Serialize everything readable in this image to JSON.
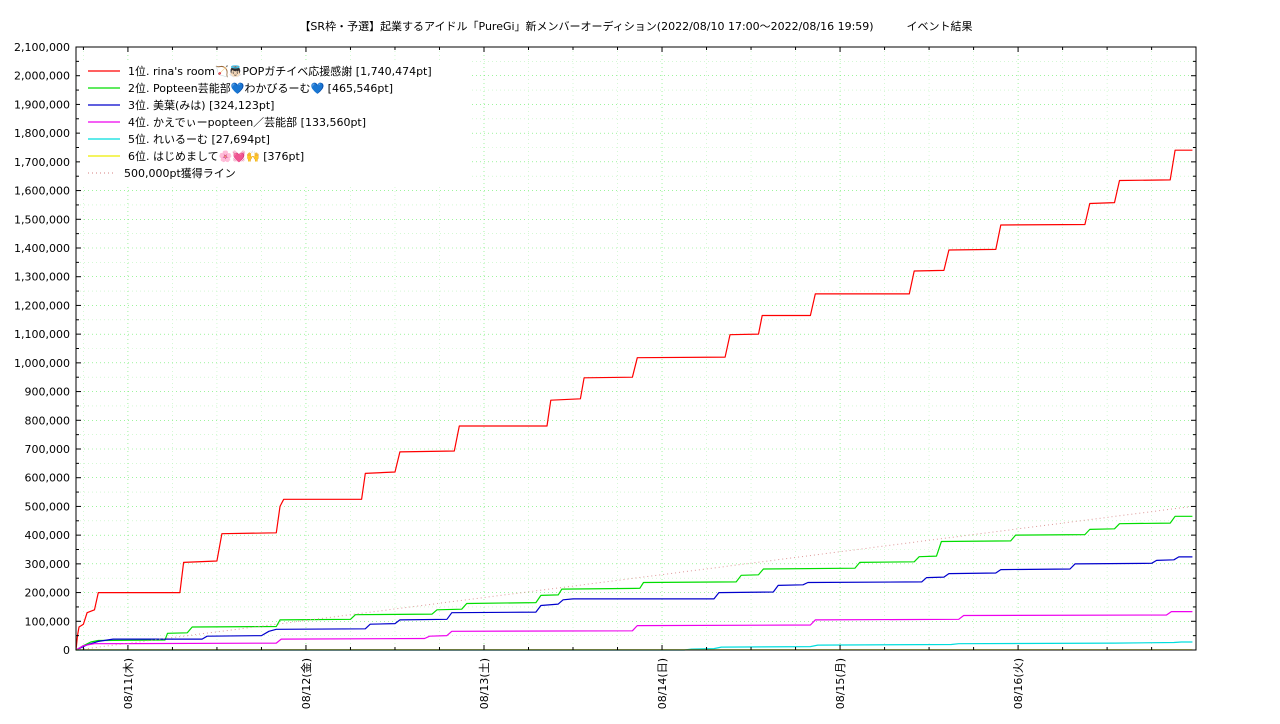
{
  "chart_data": {
    "type": "line",
    "title": "【SR枠・予選】起業するアイドル「PureGi」新メンバーオーディション(2022/08/10 17:00〜2022/08/16 19:59)　　　イベント結果",
    "xlabel": "",
    "ylabel": "",
    "ylim": [
      0,
      2100000
    ],
    "xlim": [
      "2022-08-10 17:00",
      "2022-08-16 19:59"
    ],
    "yticks": [
      "0",
      "100,000",
      "200,000",
      "300,000",
      "400,000",
      "500,000",
      "600,000",
      "700,000",
      "800,000",
      "900,000",
      "1,000,000",
      "1,100,000",
      "1,200,000",
      "1,300,000",
      "1,400,000",
      "1,500,000",
      "1,600,000",
      "1,700,000",
      "1,800,000",
      "1,900,000",
      "2,000,000",
      "2,100,000"
    ],
    "xticks": [
      {
        "t": "2022-08-11 00:00",
        "label": "08/11(木)"
      },
      {
        "t": "2022-08-12 00:00",
        "label": "08/12(金)"
      },
      {
        "t": "2022-08-13 00:00",
        "label": "08/13(土)"
      },
      {
        "t": "2022-08-14 00:00",
        "label": "08/14(日)"
      },
      {
        "t": "2022-08-15 00:00",
        "label": "08/15(月)"
      },
      {
        "t": "2022-08-16 00:00",
        "label": "08/16(火)"
      }
    ],
    "grid": true,
    "legend_position": "top-left",
    "series": [
      {
        "name": "1位. rina's room🏹👼🏻POPガチイベ応援感謝 [1,740,474pt]",
        "color": "#ff0000",
        "points": [
          [
            "2022-08-10 17:00",
            0
          ],
          [
            "2022-08-10 17:12",
            50000
          ],
          [
            "2022-08-10 17:24",
            80000
          ],
          [
            "2022-08-10 18:00",
            90000
          ],
          [
            "2022-08-10 18:30",
            130000
          ],
          [
            "2022-08-10 19:30",
            140000
          ],
          [
            "2022-08-10 20:00",
            200000
          ],
          [
            "2022-08-11 07:00",
            200000
          ],
          [
            "2022-08-11 07:30",
            305000
          ],
          [
            "2022-08-11 12:00",
            310000
          ],
          [
            "2022-08-11 12:40",
            405000
          ],
          [
            "2022-08-11 20:00",
            408000
          ],
          [
            "2022-08-11 20:30",
            500000
          ],
          [
            "2022-08-11 21:00",
            525000
          ],
          [
            "2022-08-12 07:30",
            525000
          ],
          [
            "2022-08-12 08:00",
            615000
          ],
          [
            "2022-08-12 12:00",
            620000
          ],
          [
            "2022-08-12 12:40",
            690000
          ],
          [
            "2022-08-12 20:00",
            693000
          ],
          [
            "2022-08-12 20:40",
            780000
          ],
          [
            "2022-08-13 08:30",
            780000
          ],
          [
            "2022-08-13 09:00",
            870000
          ],
          [
            "2022-08-13 13:00",
            875000
          ],
          [
            "2022-08-13 13:30",
            948000
          ],
          [
            "2022-08-13 20:00",
            950000
          ],
          [
            "2022-08-13 20:40",
            1018000
          ],
          [
            "2022-08-14 08:30",
            1020000
          ],
          [
            "2022-08-14 09:10",
            1098000
          ],
          [
            "2022-08-14 13:00",
            1100000
          ],
          [
            "2022-08-14 13:30",
            1165000
          ],
          [
            "2022-08-14 20:00",
            1165000
          ],
          [
            "2022-08-14 20:40",
            1240000
          ],
          [
            "2022-08-15 09:20",
            1240000
          ],
          [
            "2022-08-15 10:00",
            1320000
          ],
          [
            "2022-08-15 14:00",
            1322000
          ],
          [
            "2022-08-15 14:40",
            1393000
          ],
          [
            "2022-08-15 21:00",
            1395000
          ],
          [
            "2022-08-15 21:40",
            1480000
          ],
          [
            "2022-08-16 09:00",
            1482000
          ],
          [
            "2022-08-16 09:40",
            1555000
          ],
          [
            "2022-08-16 13:00",
            1558000
          ],
          [
            "2022-08-16 13:40",
            1635000
          ],
          [
            "2022-08-16 20:30",
            1637000
          ],
          [
            "2022-08-16 21:10",
            1740474
          ],
          [
            "2022-08-16 23:30",
            1740474
          ]
        ]
      },
      {
        "name": "2位. Popteen芸能部💙わかびるーむ💙 [465,546pt]",
        "color": "#00dd00",
        "points": [
          [
            "2022-08-10 17:00",
            0
          ],
          [
            "2022-08-10 18:00",
            15000
          ],
          [
            "2022-08-10 19:00",
            28000
          ],
          [
            "2022-08-10 20:00",
            33000
          ],
          [
            "2022-08-11 05:00",
            35000
          ],
          [
            "2022-08-11 05:20",
            58000
          ],
          [
            "2022-08-11 08:00",
            60000
          ],
          [
            "2022-08-11 08:40",
            80000
          ],
          [
            "2022-08-11 20:00",
            82000
          ],
          [
            "2022-08-11 20:30",
            105000
          ],
          [
            "2022-08-12 06:00",
            107000
          ],
          [
            "2022-08-12 06:40",
            123000
          ],
          [
            "2022-08-12 17:00",
            125000
          ],
          [
            "2022-08-12 17:40",
            140000
          ],
          [
            "2022-08-12 21:00",
            142000
          ],
          [
            "2022-08-12 21:40",
            162000
          ],
          [
            "2022-08-13 07:00",
            165000
          ],
          [
            "2022-08-13 07:40",
            190000
          ],
          [
            "2022-08-13 10:00",
            192000
          ],
          [
            "2022-08-13 10:30",
            212000
          ],
          [
            "2022-08-13 21:00",
            215000
          ],
          [
            "2022-08-13 21:30",
            235000
          ],
          [
            "2022-08-14 10:00",
            237000
          ],
          [
            "2022-08-14 10:40",
            260000
          ],
          [
            "2022-08-14 13:00",
            262000
          ],
          [
            "2022-08-14 13:40",
            282000
          ],
          [
            "2022-08-15 02:00",
            285000
          ],
          [
            "2022-08-15 02:40",
            305000
          ],
          [
            "2022-08-15 10:00",
            307000
          ],
          [
            "2022-08-15 10:40",
            325000
          ],
          [
            "2022-08-15 13:00",
            327000
          ],
          [
            "2022-08-15 13:40",
            378000
          ],
          [
            "2022-08-15 23:00",
            380000
          ],
          [
            "2022-08-15 23:40",
            400000
          ],
          [
            "2022-08-16 09:00",
            402000
          ],
          [
            "2022-08-16 09:40",
            420000
          ],
          [
            "2022-08-16 13:00",
            422000
          ],
          [
            "2022-08-16 13:40",
            440000
          ],
          [
            "2022-08-16 20:30",
            442000
          ],
          [
            "2022-08-16 21:10",
            465546
          ],
          [
            "2022-08-16 23:30",
            465546
          ]
        ]
      },
      {
        "name": "3位. 美葉(みは) [324,123pt]",
        "color": "#0000cc",
        "points": [
          [
            "2022-08-10 17:00",
            0
          ],
          [
            "2022-08-10 18:30",
            18000
          ],
          [
            "2022-08-10 20:00",
            30000
          ],
          [
            "2022-08-10 22:00",
            38000
          ],
          [
            "2022-08-11 10:00",
            38000
          ],
          [
            "2022-08-11 10:40",
            48000
          ],
          [
            "2022-08-11 18:00",
            50000
          ],
          [
            "2022-08-11 19:00",
            65000
          ],
          [
            "2022-08-11 20:00",
            72000
          ],
          [
            "2022-08-12 08:00",
            74000
          ],
          [
            "2022-08-12 08:40",
            90000
          ],
          [
            "2022-08-12 12:00",
            92000
          ],
          [
            "2022-08-12 12:40",
            105000
          ],
          [
            "2022-08-12 19:00",
            107000
          ],
          [
            "2022-08-12 19:40",
            130000
          ],
          [
            "2022-08-13 07:00",
            132000
          ],
          [
            "2022-08-13 07:40",
            155000
          ],
          [
            "2022-08-13 10:00",
            160000
          ],
          [
            "2022-08-13 10:40",
            175000
          ],
          [
            "2022-08-13 12:00",
            178000
          ],
          [
            "2022-08-14 07:00",
            178000
          ],
          [
            "2022-08-14 07:40",
            200000
          ],
          [
            "2022-08-14 15:00",
            202000
          ],
          [
            "2022-08-14 15:40",
            225000
          ],
          [
            "2022-08-14 19:00",
            227000
          ],
          [
            "2022-08-14 19:40",
            235000
          ],
          [
            "2022-08-15 11:00",
            237000
          ],
          [
            "2022-08-15 11:40",
            252000
          ],
          [
            "2022-08-15 14:00",
            254000
          ],
          [
            "2022-08-15 14:40",
            266000
          ],
          [
            "2022-08-15 21:00",
            268000
          ],
          [
            "2022-08-15 21:40",
            280000
          ],
          [
            "2022-08-16 07:00",
            282000
          ],
          [
            "2022-08-16 07:40",
            300000
          ],
          [
            "2022-08-16 18:00",
            302000
          ],
          [
            "2022-08-16 18:40",
            312000
          ],
          [
            "2022-08-16 21:00",
            314000
          ],
          [
            "2022-08-16 21:40",
            324123
          ],
          [
            "2022-08-16 23:30",
            324123
          ]
        ]
      },
      {
        "name": "4位. かえでぃーpopteen／芸能部 [133,560pt]",
        "color": "#ee00ee",
        "points": [
          [
            "2022-08-10 17:00",
            0
          ],
          [
            "2022-08-10 18:00",
            15000
          ],
          [
            "2022-08-10 19:30",
            22000
          ],
          [
            "2022-08-11 20:00",
            24000
          ],
          [
            "2022-08-11 20:40",
            38000
          ],
          [
            "2022-08-12 16:00",
            40000
          ],
          [
            "2022-08-12 16:40",
            48000
          ],
          [
            "2022-08-12 19:00",
            50000
          ],
          [
            "2022-08-12 19:40",
            65000
          ],
          [
            "2022-08-13 20:00",
            67000
          ],
          [
            "2022-08-13 20:40",
            85000
          ],
          [
            "2022-08-14 20:00",
            87000
          ],
          [
            "2022-08-14 20:40",
            105000
          ],
          [
            "2022-08-15 16:00",
            107000
          ],
          [
            "2022-08-15 16:40",
            120000
          ],
          [
            "2022-08-16 20:00",
            122000
          ],
          [
            "2022-08-16 20:40",
            133560
          ],
          [
            "2022-08-16 23:30",
            133560
          ]
        ]
      },
      {
        "name": "5位. れいるーむ [27,694pt]",
        "color": "#00dddd",
        "points": [
          [
            "2022-08-10 17:00",
            0
          ],
          [
            "2022-08-14 03:00",
            0
          ],
          [
            "2022-08-14 04:00",
            3000
          ],
          [
            "2022-08-14 07:00",
            5000
          ],
          [
            "2022-08-14 08:00",
            10000
          ],
          [
            "2022-08-14 20:00",
            12000
          ],
          [
            "2022-08-14 21:00",
            17000
          ],
          [
            "2022-08-15 15:00",
            19000
          ],
          [
            "2022-08-15 16:00",
            22000
          ],
          [
            "2022-08-16 13:00",
            24000
          ],
          [
            "2022-08-16 21:00",
            26000
          ],
          [
            "2022-08-16 22:00",
            27694
          ],
          [
            "2022-08-16 23:30",
            27694
          ]
        ]
      },
      {
        "name": "6位. はじめまして🌸💓🙌 [376pt]",
        "color": "#eeee00",
        "points": [
          [
            "2022-08-10 17:00",
            0
          ],
          [
            "2022-08-10 17:30",
            376
          ],
          [
            "2022-08-16 23:30",
            376
          ]
        ]
      },
      {
        "name": "500,000pt獲得ライン",
        "color": "#dd9999",
        "dotted": true,
        "points": [
          [
            "2022-08-10 17:00",
            0
          ],
          [
            "2022-08-16 23:30",
            500000
          ]
        ]
      }
    ]
  }
}
